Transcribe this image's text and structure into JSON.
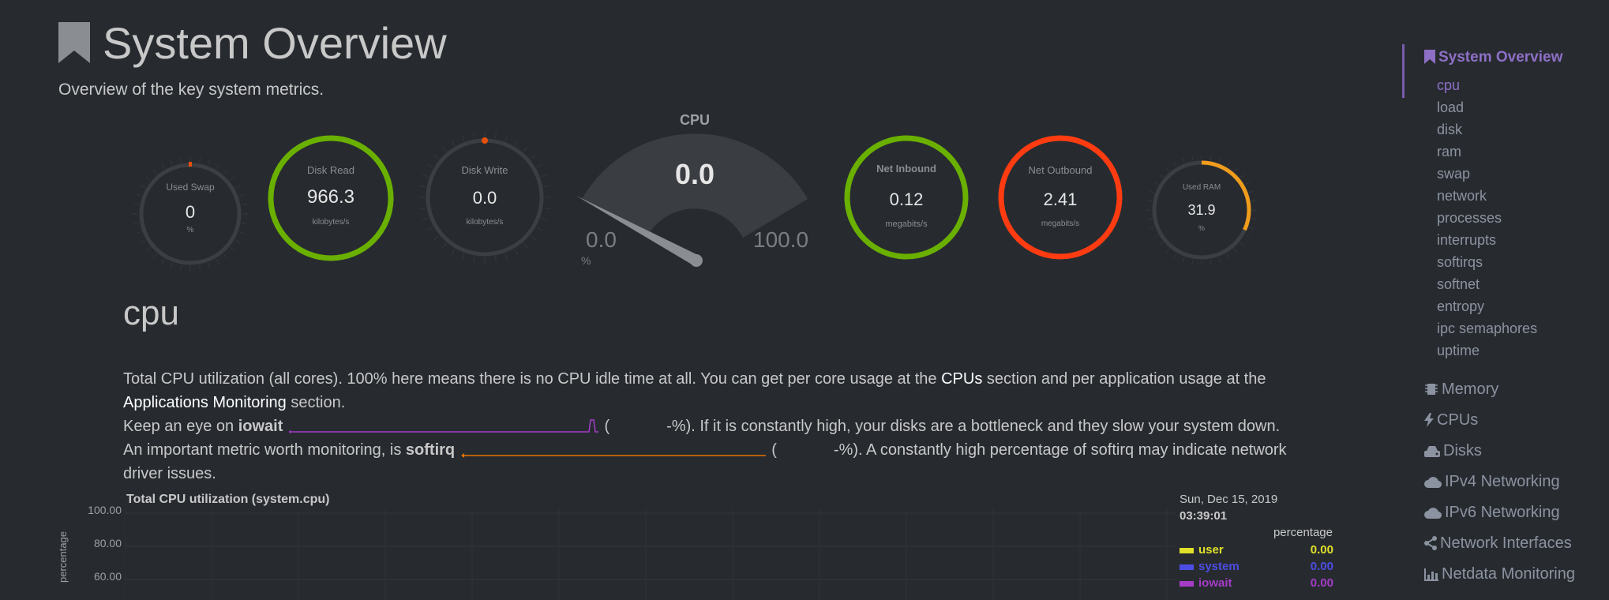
{
  "header": {
    "title": "System Overview",
    "subtitle": "Overview of the key system metrics."
  },
  "gauges": {
    "used_swap": {
      "title": "Used Swap",
      "value": "0",
      "unit": "%"
    },
    "disk_read": {
      "title": "Disk Read",
      "value": "966.3",
      "unit": "kilobytes/s",
      "color": "#6ab000"
    },
    "disk_write": {
      "title": "Disk Write",
      "value": "0.0",
      "unit": "kilobytes/s"
    },
    "cpu": {
      "title": "CPU",
      "value": "0.0",
      "min": "0.0",
      "max": "100.0",
      "unit": "%",
      "level": 0.0
    },
    "net_inbound": {
      "title": "Net Inbound",
      "value": "0.12",
      "unit": "megabits/s",
      "color": "#6ab000"
    },
    "net_outbound": {
      "title": "Net Outbound",
      "value": "2.41",
      "unit": "megabits/s",
      "color": "#ff3c11"
    },
    "used_ram": {
      "title": "Used RAM",
      "value": "31.9",
      "unit": "%",
      "level": 0.319,
      "color": "#f09c1c"
    }
  },
  "section": {
    "heading": "cpu",
    "p1_a": "Total CPU utilization (all cores). 100% here means there is no CPU idle time at all. You can get per core usage at the ",
    "p1_link1": "CPUs",
    "p1_b": " section and per application usage at the ",
    "p1_link2": "Applications Monitoring",
    "p1_c": " section.",
    "p2_a": "Keep an eye on ",
    "p2_bold": "iowait",
    "p2_b": "(",
    "p2_c": "-%). If it is constantly high, your disks are a bottleneck and they slow your system down.",
    "p3_a": "An important metric worth monitoring, is ",
    "p3_bold": "softirq",
    "p3_b": "(",
    "p3_c": "-%). A constantly high percentage of softirq may indicate network",
    "p3_d": "driver issues."
  },
  "chart": {
    "title": "Total CPU utilization (system.cpu)",
    "y_label": "percentage",
    "y_ticks": [
      "100.00",
      "80.00",
      "60.00"
    ],
    "legend_date": "Sun, Dec 15, 2019",
    "legend_time": "03:39:01",
    "legend_units": "percentage",
    "series": [
      {
        "name": "user",
        "value": "0.00",
        "color": "#e0e02a"
      },
      {
        "name": "system",
        "value": "0.00",
        "color": "#4d4de6"
      },
      {
        "name": "iowait",
        "value": "0.00",
        "color": "#a63cc8"
      }
    ]
  },
  "sidebar": {
    "active": "System Overview",
    "subitems": [
      "cpu",
      "load",
      "disk",
      "ram",
      "swap",
      "network",
      "processes",
      "interrupts",
      "softirqs",
      "softnet",
      "entropy",
      "ipc semaphores",
      "uptime"
    ],
    "sections": [
      {
        "label": "Memory",
        "icon": "memory-chip-icon"
      },
      {
        "label": "CPUs",
        "icon": "bolt-icon"
      },
      {
        "label": "Disks",
        "icon": "hdd-icon"
      },
      {
        "label": "IPv4 Networking",
        "icon": "cloud-icon"
      },
      {
        "label": "IPv6 Networking",
        "icon": "cloud-icon"
      },
      {
        "label": "Network Interfaces",
        "icon": "share-icon"
      },
      {
        "label": "Netdata Monitoring",
        "icon": "bar-chart-icon"
      }
    ]
  }
}
